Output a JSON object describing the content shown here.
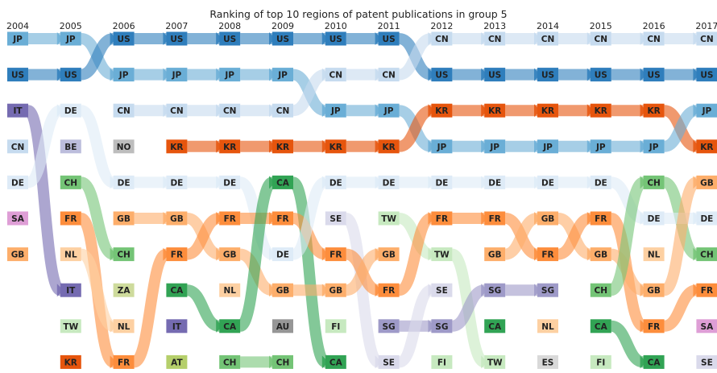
{
  "chart_data": {
    "type": "bump",
    "title": "Ranking of top 10 regions of patent publications in group 5",
    "years": [
      "2004",
      "2005",
      "2006",
      "2007",
      "2008",
      "2009",
      "2010",
      "2011",
      "2012",
      "2013",
      "2014",
      "2015",
      "2016",
      "2017"
    ],
    "rankings": [
      [
        "JP",
        "US",
        "IT",
        "CN",
        "DE",
        "SA",
        "GB"
      ],
      [
        "JP",
        "US",
        "DE",
        "BE",
        "CH",
        "FR",
        "NL",
        "IT",
        "TW",
        "KR"
      ],
      [
        "US",
        "JP",
        "CN",
        "NO",
        "DE",
        "GB",
        "CH",
        "ZA",
        "NL",
        "FR"
      ],
      [
        "US",
        "JP",
        "CN",
        "KR",
        "DE",
        "GB",
        "FR",
        "CA",
        "IT",
        "AT"
      ],
      [
        "US",
        "JP",
        "CN",
        "KR",
        "DE",
        "FR",
        "GB",
        "NL",
        "CA",
        "CH"
      ],
      [
        "US",
        "JP",
        "CN",
        "KR",
        "CA",
        "FR",
        "DE",
        "GB",
        "AU",
        "CH"
      ],
      [
        "US",
        "CN",
        "JP",
        "KR",
        "DE",
        "SE",
        "FR",
        "GB",
        "FI",
        "CA"
      ],
      [
        "US",
        "CN",
        "JP",
        "KR",
        "DE",
        "TW",
        "GB",
        "FR",
        "SG",
        "SE"
      ],
      [
        "CN",
        "US",
        "KR",
        "JP",
        "DE",
        "FR",
        "TW",
        "SE",
        "SG",
        "FI"
      ],
      [
        "CN",
        "US",
        "KR",
        "JP",
        "DE",
        "FR",
        "GB",
        "SG",
        "CA",
        "TW"
      ],
      [
        "CN",
        "US",
        "KR",
        "JP",
        "DE",
        "GB",
        "FR",
        "SG",
        "NL",
        "ES"
      ],
      [
        "CN",
        "US",
        "KR",
        "JP",
        "DE",
        "FR",
        "GB",
        "CH",
        "CA",
        "FI"
      ],
      [
        "CN",
        "US",
        "KR",
        "JP",
        "CH",
        "DE",
        "NL",
        "GB",
        "FR",
        "CA"
      ],
      [
        "CN",
        "US",
        "JP",
        "KR",
        "GB",
        "DE",
        "CH",
        "FR",
        "SA",
        "SE"
      ]
    ],
    "colors": {
      "JP": "#6aaed6",
      "US": "#2f7ebc",
      "CN": "#c6dbef",
      "DE": "#deebf7",
      "KR": "#e6550d",
      "FR": "#fd8d3c",
      "GB": "#fdae6b",
      "NL": "#fdd0a2",
      "CH": "#74c476",
      "CA": "#31a354",
      "TW": "#c7e9c0",
      "FI": "#c7e9c0",
      "AT": "#b5cf6b",
      "ZA": "#cedb9c",
      "IT": "#756bb1",
      "SG": "#9e9ac8",
      "SE": "#dadaeb",
      "BE": "#bcbddc",
      "SA": "#de9ed6",
      "NO": "#bdbdbd",
      "AU": "#969696",
      "ES": "#d9d9d9"
    }
  }
}
